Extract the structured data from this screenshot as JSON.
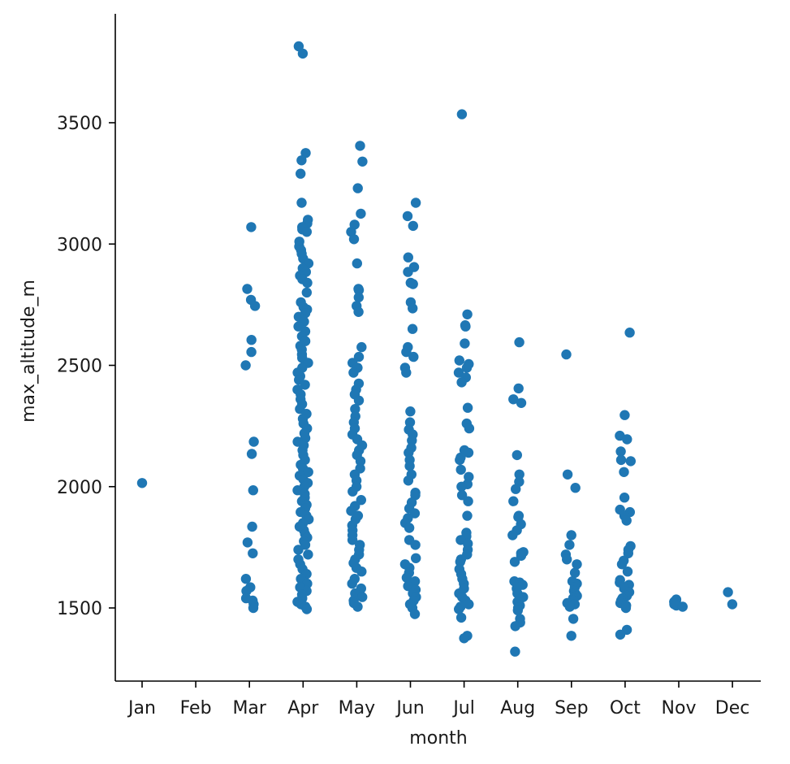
{
  "chart_data": {
    "type": "scatter",
    "subtype": "strip",
    "title": "",
    "xlabel": "month",
    "ylabel": "max_altitude_m",
    "categories": [
      "Jan",
      "Feb",
      "Mar",
      "Apr",
      "May",
      "Jun",
      "Jul",
      "Aug",
      "Sep",
      "Oct",
      "Nov",
      "Dec"
    ],
    "yticks": [
      1500,
      2000,
      2500,
      3000,
      3500
    ],
    "ylim": [
      1200,
      3950
    ],
    "grid": false,
    "marker_color": "#1f77b4",
    "points": {
      "Jan": [
        2015
      ],
      "Feb": [],
      "Mar": [
        3070,
        2815,
        2770,
        2745,
        2605,
        2555,
        2500,
        2185,
        2135,
        1985,
        1835,
        1770,
        1725,
        1620,
        1585,
        1570,
        1540,
        1530,
        1515,
        1500
      ],
      "Apr": [
        3815,
        3785,
        3375,
        3345,
        3290,
        3170,
        3100,
        3085,
        3070,
        3060,
        3050,
        3010,
        2990,
        2975,
        2960,
        2940,
        2920,
        2900,
        2885,
        2870,
        2855,
        2840,
        2800,
        2760,
        2740,
        2730,
        2715,
        2700,
        2680,
        2660,
        2640,
        2620,
        2600,
        2580,
        2565,
        2545,
        2530,
        2510,
        2490,
        2470,
        2455,
        2440,
        2420,
        2400,
        2380,
        2360,
        2340,
        2320,
        2300,
        2280,
        2260,
        2240,
        2220,
        2200,
        2185,
        2170,
        2150,
        2130,
        2110,
        2090,
        2075,
        2060,
        2045,
        2030,
        2015,
        2000,
        1985,
        1970,
        1955,
        1940,
        1925,
        1910,
        1895,
        1880,
        1865,
        1850,
        1835,
        1820,
        1805,
        1790,
        1775,
        1760,
        1740,
        1720,
        1700,
        1680,
        1660,
        1640,
        1620,
        1600,
        1585,
        1570,
        1555,
        1540,
        1525,
        1515,
        1505,
        1495
      ],
      "May": [
        3405,
        3340,
        3230,
        3125,
        3080,
        3050,
        3020,
        2920,
        2815,
        2810,
        2780,
        2745,
        2720,
        2575,
        2535,
        2510,
        2490,
        2470,
        2425,
        2400,
        2380,
        2355,
        2320,
        2290,
        2265,
        2240,
        2215,
        2195,
        2170,
        2150,
        2130,
        2105,
        2075,
        2050,
        2025,
        2000,
        1980,
        1945,
        1920,
        1900,
        1880,
        1865,
        1840,
        1820,
        1800,
        1780,
        1760,
        1740,
        1720,
        1700,
        1685,
        1665,
        1650,
        1620,
        1600,
        1580,
        1560,
        1545,
        1530,
        1520,
        1505
      ],
      "Jun": [
        3170,
        3115,
        3075,
        2945,
        2905,
        2885,
        2840,
        2835,
        2760,
        2735,
        2650,
        2575,
        2555,
        2535,
        2490,
        2470,
        2310,
        2265,
        2235,
        2215,
        2190,
        2160,
        2140,
        2110,
        2085,
        2050,
        2025,
        1975,
        1965,
        1935,
        1910,
        1890,
        1870,
        1850,
        1830,
        1780,
        1760,
        1705,
        1680,
        1665,
        1645,
        1625,
        1610,
        1590,
        1575,
        1560,
        1545,
        1530,
        1515,
        1500,
        1475
      ],
      "Jul": [
        3535,
        2710,
        2665,
        2660,
        2590,
        2520,
        2505,
        2490,
        2470,
        2450,
        2430,
        2325,
        2260,
        2240,
        2150,
        2140,
        2120,
        2110,
        2070,
        2040,
        2010,
        2000,
        1965,
        1940,
        1880,
        1810,
        1795,
        1780,
        1765,
        1740,
        1720,
        1700,
        1690,
        1660,
        1640,
        1620,
        1600,
        1580,
        1560,
        1545,
        1530,
        1515,
        1505,
        1495,
        1460,
        1385,
        1375
      ],
      "Aug": [
        2595,
        2405,
        2360,
        2345,
        2130,
        2050,
        2020,
        1990,
        1940,
        1880,
        1875,
        1845,
        1820,
        1800,
        1730,
        1725,
        1715,
        1690,
        1610,
        1605,
        1595,
        1580,
        1560,
        1545,
        1535,
        1525,
        1510,
        1500,
        1490,
        1455,
        1440,
        1425,
        1320
      ],
      "Sep": [
        2545,
        2050,
        1995,
        1800,
        1760,
        1720,
        1700,
        1680,
        1645,
        1610,
        1600,
        1585,
        1570,
        1560,
        1550,
        1540,
        1530,
        1520,
        1515,
        1505,
        1455,
        1385
      ],
      "Oct": [
        2635,
        2295,
        2210,
        2195,
        2145,
        2110,
        2105,
        2060,
        1955,
        1905,
        1895,
        1880,
        1860,
        1755,
        1740,
        1725,
        1695,
        1680,
        1650,
        1615,
        1605,
        1595,
        1580,
        1565,
        1550,
        1540,
        1530,
        1520,
        1510,
        1500,
        1410,
        1390
      ],
      "Nov": [
        1535,
        1530,
        1525,
        1520,
        1515,
        1510,
        1505
      ],
      "Dec": [
        1565,
        1515
      ]
    }
  }
}
